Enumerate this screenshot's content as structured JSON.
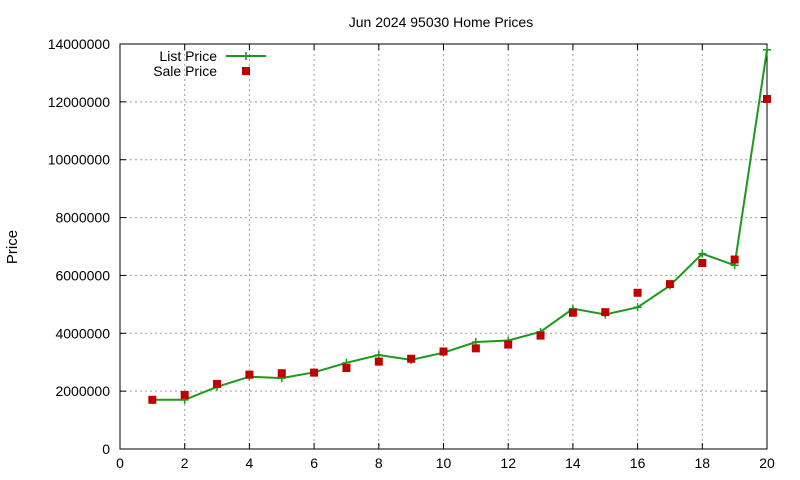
{
  "chart_data": {
    "type": "line",
    "title": "Jun 2024 95030 Home Prices",
    "xlabel": "",
    "ylabel": "Price",
    "xlim": [
      0,
      20
    ],
    "ylim": [
      0,
      14000000
    ],
    "x_ticks": [
      0,
      2,
      4,
      6,
      8,
      10,
      12,
      14,
      16,
      18,
      20
    ],
    "y_ticks": [
      0,
      2000000,
      4000000,
      6000000,
      8000000,
      10000000,
      12000000,
      14000000
    ],
    "grid": true,
    "legend_position": "top-left",
    "x": [
      1,
      2,
      3,
      4,
      5,
      6,
      7,
      8,
      9,
      10,
      11,
      12,
      13,
      14,
      15,
      16,
      17,
      18,
      19,
      20
    ],
    "series": [
      {
        "name": "List Price",
        "style": "line-with-plus-markers",
        "color": "#1a9a1a",
        "values": [
          1700000,
          1700000,
          2150000,
          2500000,
          2450000,
          2650000,
          2980000,
          3250000,
          3080000,
          3330000,
          3700000,
          3750000,
          4050000,
          4850000,
          4650000,
          4900000,
          5650000,
          6750000,
          6350000,
          13800000
        ]
      },
      {
        "name": "Sale Price",
        "style": "square-markers",
        "color": "#c00000",
        "values": [
          1700000,
          1870000,
          2250000,
          2570000,
          2620000,
          2640000,
          2800000,
          3020000,
          3120000,
          3370000,
          3480000,
          3610000,
          3920000,
          4710000,
          4730000,
          5400000,
          5700000,
          6430000,
          6550000,
          12100000
        ]
      }
    ]
  }
}
